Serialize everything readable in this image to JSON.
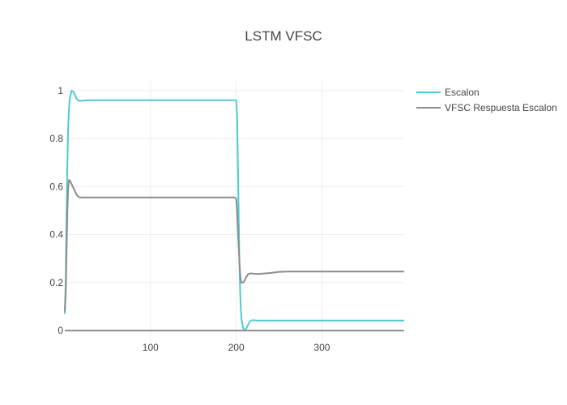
{
  "chart_data": {
    "type": "line",
    "title": "LSTM VFSC",
    "xlabel": "",
    "ylabel": "",
    "xlim": [
      0,
      396
    ],
    "ylim": [
      -0.04,
      1.04
    ],
    "xticks": [
      100,
      200,
      300
    ],
    "yticks": [
      0,
      0.2,
      0.4,
      0.6,
      0.8,
      1
    ],
    "ytick_labels": [
      "0",
      "0.2",
      "0.4",
      "0.6",
      "0.8",
      "1"
    ],
    "grid": true,
    "legend_position": "top-right",
    "series": [
      {
        "name": "Escalon",
        "color": "#4ecad3",
        "x": [
          0,
          1,
          2,
          3,
          4,
          5,
          6,
          8,
          10,
          12,
          14,
          16,
          18,
          20,
          25,
          30,
          40,
          100,
          150,
          198,
          200,
          201,
          202,
          203,
          204,
          205,
          206,
          208,
          210,
          212,
          214,
          216,
          218,
          220,
          225,
          230,
          240,
          300,
          396
        ],
        "y": [
          0.07,
          0.2,
          0.45,
          0.7,
          0.85,
          0.93,
          0.97,
          1.0,
          0.995,
          0.98,
          0.965,
          0.958,
          0.957,
          0.958,
          0.959,
          0.96,
          0.96,
          0.96,
          0.96,
          0.96,
          0.96,
          0.9,
          0.7,
          0.45,
          0.25,
          0.12,
          0.05,
          0.01,
          0.0,
          0.01,
          0.025,
          0.038,
          0.043,
          0.043,
          0.042,
          0.042,
          0.042,
          0.042,
          0.042
        ]
      },
      {
        "name": "VFSC Respuesta Escalon",
        "color": "#8c8c8c",
        "x": [
          0,
          1,
          2,
          3,
          4,
          5,
          6,
          8,
          10,
          12,
          14,
          16,
          18,
          20,
          25,
          30,
          40,
          100,
          150,
          198,
          200,
          201,
          202,
          203,
          204,
          205,
          206,
          208,
          210,
          212,
          214,
          216,
          218,
          220,
          225,
          230,
          240,
          250,
          260,
          300,
          396
        ],
        "y": [
          0.08,
          0.15,
          0.32,
          0.5,
          0.6,
          0.628,
          0.625,
          0.61,
          0.595,
          0.58,
          0.565,
          0.557,
          0.555,
          0.555,
          0.555,
          0.555,
          0.555,
          0.555,
          0.555,
          0.555,
          0.55,
          0.5,
          0.42,
          0.34,
          0.27,
          0.22,
          0.2,
          0.2,
          0.21,
          0.225,
          0.235,
          0.238,
          0.238,
          0.237,
          0.236,
          0.237,
          0.24,
          0.245,
          0.246,
          0.246,
          0.246
        ]
      },
      {
        "name": "",
        "color": "#8c8c8c",
        "x": [
          0,
          396
        ],
        "y": [
          0,
          0
        ]
      }
    ]
  }
}
